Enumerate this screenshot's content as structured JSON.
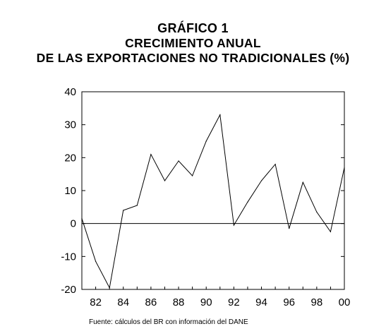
{
  "title": {
    "line1": "GRÁFICO 1",
    "line2": "CRECIMIENTO ANUAL",
    "line3": "DE LAS EXPORTACIONES NO TRADICIONALES (%)"
  },
  "source": "Fuente: cálculos del  BR con información del DANE",
  "chart_data": {
    "type": "line",
    "title": "CRECIMIENTO ANUAL DE LAS EXPORTACIONES NO TRADICIONALES (%)",
    "xlabel": "",
    "ylabel": "",
    "x": [
      1981,
      1982,
      1983,
      1984,
      1985,
      1986,
      1987,
      1988,
      1989,
      1990,
      1991,
      1992,
      1993,
      1994,
      1995,
      1996,
      1997,
      1998,
      1999,
      2000
    ],
    "values": [
      1.5,
      -11.5,
      -19.5,
      4.0,
      5.5,
      21.0,
      13.0,
      19.0,
      14.5,
      25.0,
      33.0,
      -0.5,
      6.5,
      13.0,
      18.0,
      -1.5,
      12.5,
      3.5,
      -2.5,
      17.0
    ],
    "ylim": [
      -20,
      40
    ],
    "xlim": [
      1981,
      2000
    ],
    "y_ticks": [
      -20,
      -10,
      0,
      10,
      20,
      30,
      40
    ],
    "x_ticks": [
      1982,
      1984,
      1986,
      1988,
      1990,
      1992,
      1994,
      1996,
      1998,
      2000
    ],
    "x_tick_labels": [
      "82",
      "84",
      "86",
      "88",
      "90",
      "92",
      "94",
      "96",
      "98",
      "00"
    ],
    "zero_line": true,
    "grid": false,
    "colors": {
      "line": "#000000",
      "axes": "#000000"
    }
  }
}
